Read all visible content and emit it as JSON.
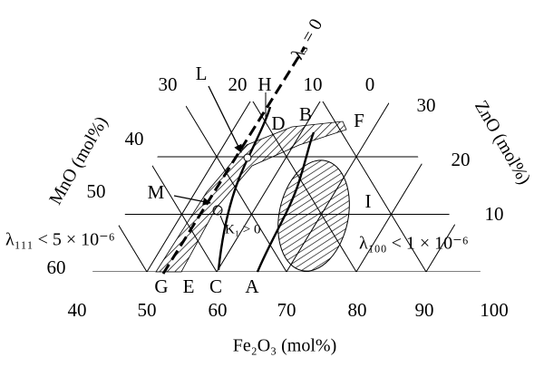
{
  "axes": {
    "bottom": {
      "title": "Fe₂O₃ (mol%)",
      "ticks": [
        "40",
        "50",
        "60",
        "70",
        "80",
        "90",
        "100"
      ]
    },
    "left": {
      "title": "MnO (mol%)",
      "ticks": [
        "0",
        "10",
        "20",
        "30",
        "40",
        "50",
        "60"
      ]
    },
    "right": {
      "title": "ZnO (mol%)",
      "ticks": [
        "10",
        "20",
        "30"
      ]
    }
  },
  "annotations": {
    "lambda_s": "λₛ = 0",
    "lambda_111": "λ₁₁₁ < 5 × 10⁻⁶",
    "lambda_100": "λ₁₀₀ < 1 × 10⁻⁶",
    "k1": "K₁ > 0"
  },
  "points": [
    "L",
    "H",
    "D",
    "B",
    "F",
    "M",
    "I",
    "G",
    "E",
    "C",
    "A"
  ]
}
